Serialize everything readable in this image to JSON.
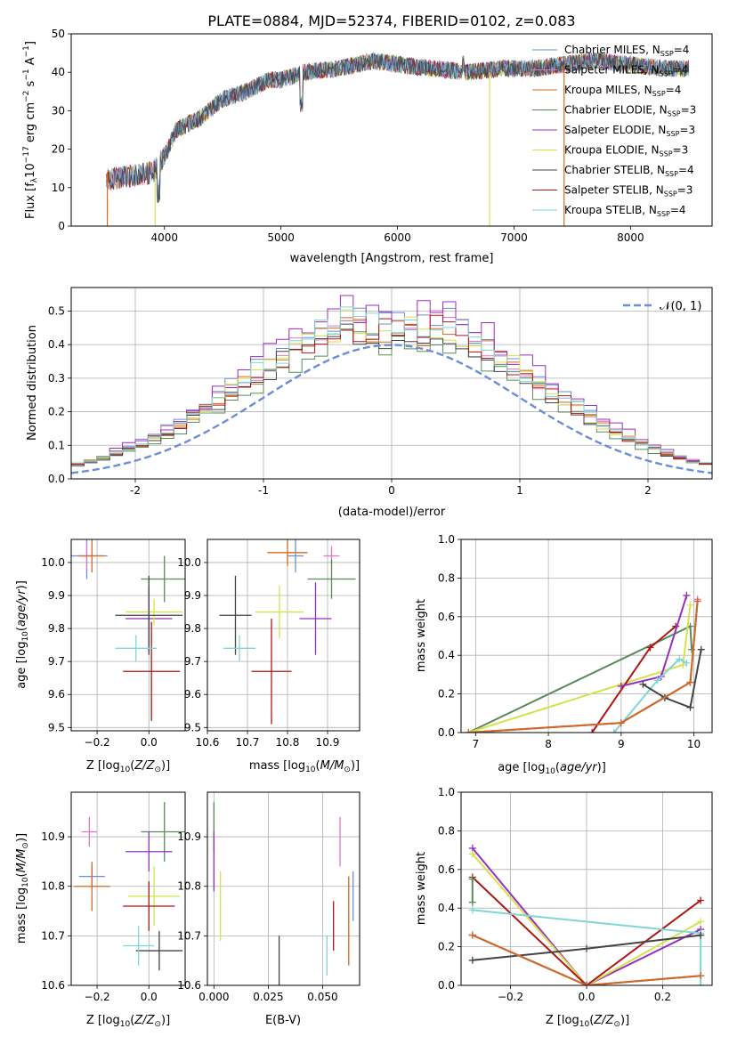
{
  "colors": [
    "#6a8fd4",
    "#e377c2",
    "#d46a1f",
    "#5a8a5a",
    "#9a2fbf",
    "#d4e34a",
    "#444444",
    "#b01515",
    "#7fd6d6"
  ],
  "chart_data": [
    {
      "id": "p1",
      "type": "line",
      "title": "PLATE=0884, MJD=52374, FIBERID=0102, z=0.083",
      "xlabel": "wavelength [Angstrom, rest frame]",
      "ylabel": "Flux [fλ10⁻¹⁷ erg cm⁻² s⁻¹ A⁻¹]",
      "xlim": [
        3200,
        8700
      ],
      "ylim": [
        0,
        50
      ],
      "xticks": [
        4000,
        5000,
        6000,
        7000,
        8000
      ],
      "yticks": [
        0,
        10,
        20,
        30,
        40,
        50
      ],
      "legend": {
        "position": "upper right",
        "entries": [
          "Chabrier MILES, N_SSP=4",
          "Salpeter MILES, N_SSP=4",
          "Kroupa MILES, N_SSP=4",
          "Chabrier ELODIE, N_SSP=3",
          "Salpeter ELODIE, N_SSP=3",
          "Kroupa ELODIE, N_SSP=3",
          "Chabrier STELIB, N_SSP=4",
          "Salpeter STELIB, N_SSP=3",
          "Kroupa STELIB, N_SSP=4"
        ]
      },
      "continuum": [
        [
          3500,
          12
        ],
        [
          3700,
          13
        ],
        [
          3900,
          14
        ],
        [
          4000,
          18
        ],
        [
          4100,
          25
        ],
        [
          4300,
          28
        ],
        [
          4500,
          33
        ],
        [
          4700,
          35
        ],
        [
          4900,
          38
        ],
        [
          5000,
          38
        ],
        [
          5200,
          40
        ],
        [
          5500,
          41
        ],
        [
          5800,
          43
        ],
        [
          6000,
          42
        ],
        [
          6300,
          41
        ],
        [
          6600,
          40
        ],
        [
          6900,
          41
        ],
        [
          7200,
          41
        ],
        [
          7400,
          42
        ],
        [
          7700,
          43
        ],
        [
          8000,
          42
        ],
        [
          8300,
          41
        ],
        [
          8500,
          41
        ]
      ],
      "series_spans": [
        [
          3500,
          8500
        ],
        [
          3500,
          8500
        ],
        [
          3500,
          8500
        ],
        [
          3920,
          8500
        ],
        [
          3920,
          8500
        ],
        [
          3920,
          8500
        ],
        [
          3500,
          8500
        ],
        [
          3500,
          8500
        ],
        [
          3500,
          8500
        ]
      ],
      "vertical_drops": [
        {
          "x": 3510,
          "series": 2
        },
        {
          "x": 3920,
          "series": 5
        },
        {
          "x": 6790,
          "series": 5
        },
        {
          "x": 7430,
          "series": 2
        }
      ]
    },
    {
      "id": "p2",
      "type": "histogram",
      "xlabel": "(data-model)/error",
      "ylabel": "Normed distribution",
      "xlim": [
        -2.5,
        2.5
      ],
      "ylim": [
        0,
        0.57
      ],
      "xticks": [
        -2,
        -1,
        0,
        1,
        2
      ],
      "yticks": [
        0.0,
        0.1,
        0.2,
        0.3,
        0.4,
        0.5
      ],
      "legend": {
        "position": "upper right",
        "entries": [
          "𝒩(0, 1)"
        ]
      },
      "reference": {
        "type": "normal",
        "mean": 0,
        "sigma": 1,
        "label": "𝒩(0, 1)"
      },
      "bins": {
        "start": -2.5,
        "width": 0.1,
        "count": 50
      },
      "series_count": 9,
      "peaks": [
        0.52,
        0.5,
        0.48,
        0.44,
        0.54,
        0.49,
        0.47,
        0.48,
        0.5
      ]
    },
    {
      "id": "p3",
      "type": "scatter",
      "xlabel": "Z [log₁₀(Z/Z⊙)]",
      "ylabel": "age  [log₁₀(age/yr)]",
      "xlim": [
        -0.3,
        0.14
      ],
      "ylim": [
        9.49,
        10.07
      ],
      "xticks": [
        -0.2,
        0.0
      ],
      "xticklabels": [
        "−0.2",
        "0.0"
      ],
      "yticks": [
        9.5,
        9.6,
        9.7,
        9.8,
        9.9,
        10.0
      ],
      "points": [
        {
          "x": -0.24,
          "y": 10.02,
          "xerr": 0.08,
          "yerr": 0.07,
          "c": 0
        },
        {
          "x": -0.24,
          "y": 10.02,
          "xerr": 0.03,
          "yerr": 0.04,
          "c": 1
        },
        {
          "x": -0.22,
          "y": 10.02,
          "xerr": 0.05,
          "yerr": 0.05,
          "c": 2
        },
        {
          "x": 0.06,
          "y": 9.95,
          "xerr": 0.09,
          "yerr": 0.07,
          "c": 3
        },
        {
          "x": 0.0,
          "y": 9.83,
          "xerr": 0.09,
          "yerr": 0.1,
          "c": 4
        },
        {
          "x": 0.02,
          "y": 9.85,
          "xerr": 0.11,
          "yerr": 0.04,
          "c": 5
        },
        {
          "x": 0.0,
          "y": 9.84,
          "xerr": 0.13,
          "yerr": 0.12,
          "c": 6
        },
        {
          "x": 0.01,
          "y": 9.67,
          "xerr": 0.11,
          "yerr": 0.15,
          "c": 7
        },
        {
          "x": -0.05,
          "y": 9.74,
          "xerr": 0.08,
          "yerr": 0.04,
          "c": 8
        }
      ]
    },
    {
      "id": "p4",
      "type": "scatter",
      "xlabel": "mass [log₁₀(M/M⊙)]",
      "ylabel": "",
      "xlim": [
        10.6,
        10.98
      ],
      "ylim": [
        9.49,
        10.07
      ],
      "xticks": [
        10.6,
        10.7,
        10.8,
        10.9
      ],
      "xticklabels": [
        "10.6",
        "10.7",
        "10.8",
        "10.9"
      ],
      "yticks": [
        9.5,
        9.6,
        9.7,
        9.8,
        9.9,
        10.0
      ],
      "points": [
        {
          "x": 10.82,
          "y": 10.02,
          "xerr": 0.02,
          "yerr": 0.05,
          "c": 0
        },
        {
          "x": 10.91,
          "y": 10.02,
          "xerr": 0.02,
          "yerr": 0.03,
          "c": 1
        },
        {
          "x": 10.8,
          "y": 10.03,
          "xerr": 0.05,
          "yerr": 0.04,
          "c": 2
        },
        {
          "x": 10.91,
          "y": 9.95,
          "xerr": 0.06,
          "yerr": 0.06,
          "c": 3
        },
        {
          "x": 10.87,
          "y": 9.83,
          "xerr": 0.04,
          "yerr": 0.11,
          "c": 4
        },
        {
          "x": 10.78,
          "y": 9.85,
          "xerr": 0.06,
          "yerr": 0.08,
          "c": 5
        },
        {
          "x": 10.67,
          "y": 9.84,
          "xerr": 0.04,
          "yerr": 0.12,
          "c": 6
        },
        {
          "x": 10.76,
          "y": 9.67,
          "xerr": 0.05,
          "yerr": 0.16,
          "c": 7
        },
        {
          "x": 10.68,
          "y": 9.74,
          "xerr": 0.04,
          "yerr": 0.04,
          "c": 8
        }
      ]
    },
    {
      "id": "p5",
      "type": "line",
      "xlabel": "age  [log₁₀(age/yr)]",
      "ylabel": "mass weight",
      "xlim": [
        6.8,
        10.25
      ],
      "ylim": [
        0,
        1
      ],
      "xticks": [
        7,
        8,
        9,
        10
      ],
      "yticks": [
        0.0,
        0.2,
        0.4,
        0.6,
        0.8,
        1.0
      ],
      "series": [
        {
          "c": 3,
          "points": [
            [
              6.9,
              0.0
            ],
            [
              9.95,
              0.55
            ],
            [
              9.97,
              0.43
            ]
          ]
        },
        {
          "c": 5,
          "points": [
            [
              6.9,
              0.0
            ],
            [
              9.0,
              0.25
            ],
            [
              9.85,
              0.35
            ],
            [
              9.95,
              0.66
            ]
          ]
        },
        {
          "c": 7,
          "points": [
            [
              8.6,
              0.0
            ],
            [
              9.4,
              0.44
            ],
            [
              9.75,
              0.55
            ]
          ]
        },
        {
          "c": 4,
          "points": [
            [
              9.0,
              0.24
            ],
            [
              9.55,
              0.29
            ],
            [
              9.9,
              0.71
            ]
          ]
        },
        {
          "c": 8,
          "points": [
            [
              8.9,
              0.0
            ],
            [
              9.5,
              0.27
            ],
            [
              9.8,
              0.38
            ],
            [
              9.9,
              0.36
            ]
          ]
        },
        {
          "c": 6,
          "points": [
            [
              9.3,
              0.25
            ],
            [
              9.6,
              0.18
            ],
            [
              9.95,
              0.13
            ],
            [
              10.1,
              0.43
            ]
          ]
        },
        {
          "c": 1,
          "points": [
            [
              6.9,
              0.0
            ],
            [
              9.0,
              0.05
            ],
            [
              9.95,
              0.26
            ],
            [
              10.05,
              0.69
            ]
          ]
        },
        {
          "c": 0,
          "points": [
            [
              6.9,
              0.0
            ],
            [
              9.0,
              0.05
            ],
            [
              9.95,
              0.26
            ],
            [
              10.05,
              0.68
            ]
          ]
        },
        {
          "c": 2,
          "points": [
            [
              6.9,
              0.0
            ],
            [
              9.0,
              0.05
            ],
            [
              9.95,
              0.26
            ],
            [
              10.05,
              0.68
            ]
          ]
        }
      ]
    },
    {
      "id": "p6",
      "type": "scatter",
      "xlabel": "Z [log₁₀(Z/Z⊙)]",
      "ylabel": "mass [log₁₀(M/M⊙)]",
      "xlim": [
        -0.3,
        0.14
      ],
      "ylim": [
        10.6,
        10.99
      ],
      "xticks": [
        -0.2,
        0.0
      ],
      "xticklabels": [
        "−0.2",
        "0.0"
      ],
      "yticks": [
        10.6,
        10.7,
        10.8,
        10.9
      ],
      "points": [
        {
          "x": -0.22,
          "y": 10.82,
          "xerr": 0.05,
          "yerr": 0.02,
          "c": 0
        },
        {
          "x": -0.23,
          "y": 10.91,
          "xerr": 0.03,
          "yerr": 0.03,
          "c": 1
        },
        {
          "x": -0.22,
          "y": 10.8,
          "xerr": 0.07,
          "yerr": 0.05,
          "c": 2
        },
        {
          "x": 0.06,
          "y": 10.91,
          "xerr": 0.09,
          "yerr": 0.06,
          "c": 3
        },
        {
          "x": 0.0,
          "y": 10.87,
          "xerr": 0.09,
          "yerr": 0.04,
          "c": 4
        },
        {
          "x": 0.02,
          "y": 10.78,
          "xerr": 0.1,
          "yerr": 0.06,
          "c": 5
        },
        {
          "x": 0.04,
          "y": 10.67,
          "xerr": 0.09,
          "yerr": 0.04,
          "c": 6
        },
        {
          "x": 0.0,
          "y": 10.76,
          "xerr": 0.1,
          "yerr": 0.05,
          "c": 7
        },
        {
          "x": -0.04,
          "y": 10.68,
          "xerr": 0.06,
          "yerr": 0.04,
          "c": 8
        }
      ]
    },
    {
      "id": "p7",
      "type": "scatter",
      "xlabel": "E(B-V)",
      "ylabel": "",
      "xlim": [
        -0.003,
        0.067
      ],
      "ylim": [
        10.6,
        10.99
      ],
      "xticks": [
        0.0,
        0.025,
        0.05
      ],
      "xticklabels": [
        "0.000",
        "0.025",
        "0.050"
      ],
      "yticks": [
        10.6,
        10.7,
        10.8,
        10.9
      ],
      "points": [
        {
          "x": 0.064,
          "y": 10.78,
          "xerr": 0,
          "yerr": 0.05,
          "c": 0
        },
        {
          "x": 0.058,
          "y": 10.89,
          "xerr": 0,
          "yerr": 0.05,
          "c": 1
        },
        {
          "x": 0.062,
          "y": 10.73,
          "xerr": 0,
          "yerr": 0.09,
          "c": 2
        },
        {
          "x": 0.0,
          "y": 10.92,
          "xerr": 0,
          "yerr": 0.05,
          "c": 3
        },
        {
          "x": 0.0,
          "y": 10.85,
          "xerr": 0,
          "yerr": 0.06,
          "c": 4
        },
        {
          "x": 0.003,
          "y": 10.76,
          "xerr": 0,
          "yerr": 0.07,
          "c": 5
        },
        {
          "x": 0.03,
          "y": 10.65,
          "xerr": 0,
          "yerr": 0.05,
          "c": 6
        },
        {
          "x": 0.055,
          "y": 10.72,
          "xerr": 0,
          "yerr": 0.05,
          "c": 7
        },
        {
          "x": 0.052,
          "y": 10.66,
          "xerr": 0,
          "yerr": 0.04,
          "c": 8
        }
      ]
    },
    {
      "id": "p8",
      "type": "line",
      "xlabel": "Z [log₁₀(Z/Z⊙)]",
      "ylabel": "mass weight",
      "xlim": [
        -0.33,
        0.33
      ],
      "ylim": [
        0,
        1
      ],
      "xticks": [
        -0.2,
        0.0,
        0.2
      ],
      "xticklabels": [
        "−0.2",
        "0.0",
        "0.2"
      ],
      "yticks": [
        0.0,
        0.2,
        0.4,
        0.6,
        0.8,
        1.0
      ],
      "series": [
        {
          "c": 4,
          "points": [
            [
              -0.3,
              0.71
            ],
            [
              0.0,
              0.0
            ],
            [
              0.3,
              0.29
            ]
          ]
        },
        {
          "c": 5,
          "points": [
            [
              -0.3,
              0.68
            ],
            [
              0.0,
              0.0
            ],
            [
              0.3,
              0.33
            ]
          ]
        },
        {
          "c": 7,
          "points": [
            [
              -0.3,
              0.56
            ],
            [
              0.0,
              0.0
            ],
            [
              0.3,
              0.44
            ]
          ]
        },
        {
          "c": 8,
          "points": [
            [
              -0.3,
              0.39
            ],
            [
              0.3,
              0.27
            ],
            [
              0.3,
              0.0
            ]
          ]
        },
        {
          "c": 6,
          "points": [
            [
              -0.3,
              0.13
            ],
            [
              0.0,
              0.19
            ],
            [
              0.3,
              0.26
            ]
          ]
        },
        {
          "c": 3,
          "points": [
            [
              -0.3,
              0.55
            ],
            [
              -0.3,
              0.43
            ]
          ]
        },
        {
          "c": 1,
          "points": [
            [
              -0.3,
              0.26
            ],
            [
              0.0,
              0.0
            ],
            [
              0.3,
              0.05
            ]
          ]
        },
        {
          "c": 0,
          "points": [
            [
              -0.3,
              0.26
            ],
            [
              0.0,
              0.0
            ],
            [
              0.3,
              0.05
            ]
          ]
        },
        {
          "c": 2,
          "points": [
            [
              -0.3,
              0.26
            ],
            [
              0.0,
              0.0
            ],
            [
              0.3,
              0.05
            ]
          ]
        }
      ]
    }
  ]
}
